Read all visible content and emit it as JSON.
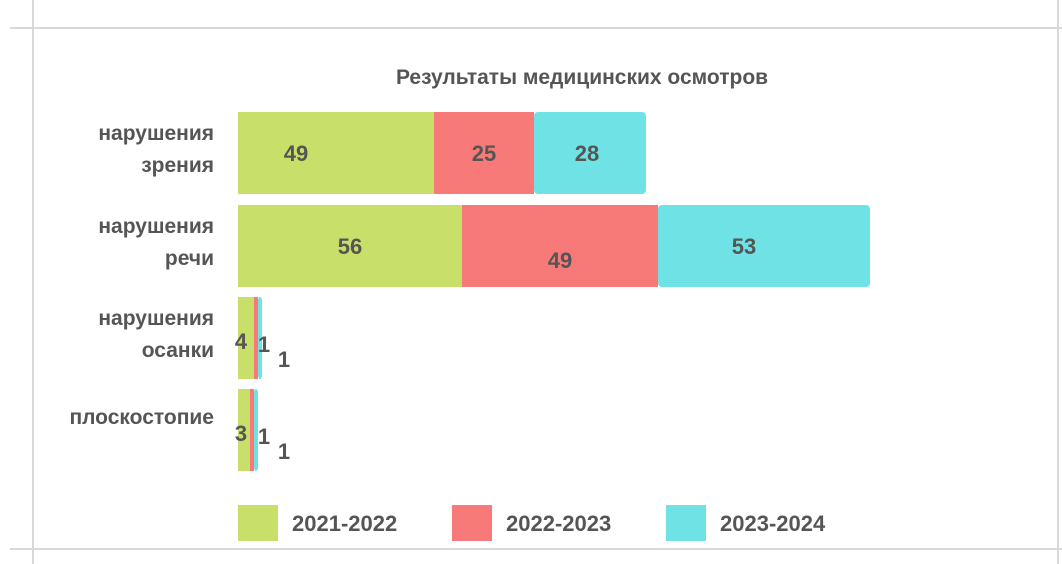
{
  "chart_data": {
    "type": "bar",
    "orientation": "horizontal",
    "stacked": true,
    "title": "Результаты медицинских осмотров",
    "categories": [
      [
        "нарушения",
        "зрения"
      ],
      [
        "нарушения",
        "речи"
      ],
      [
        "нарушения",
        "осанки"
      ],
      [
        "плоскостопие"
      ]
    ],
    "series": [
      {
        "name": "2021-2022",
        "color": "#c8e06a",
        "values": [
          49,
          56,
          4,
          3
        ]
      },
      {
        "name": "2022-2023",
        "color": "#f77a78",
        "values": [
          25,
          49,
          1,
          1
        ]
      },
      {
        "name": "2023-2024",
        "color": "#6ee2e4",
        "values": [
          28,
          53,
          1,
          1
        ]
      }
    ],
    "xlim": [
      0,
      250
    ],
    "grid": false,
    "legend_position": "bottom"
  }
}
